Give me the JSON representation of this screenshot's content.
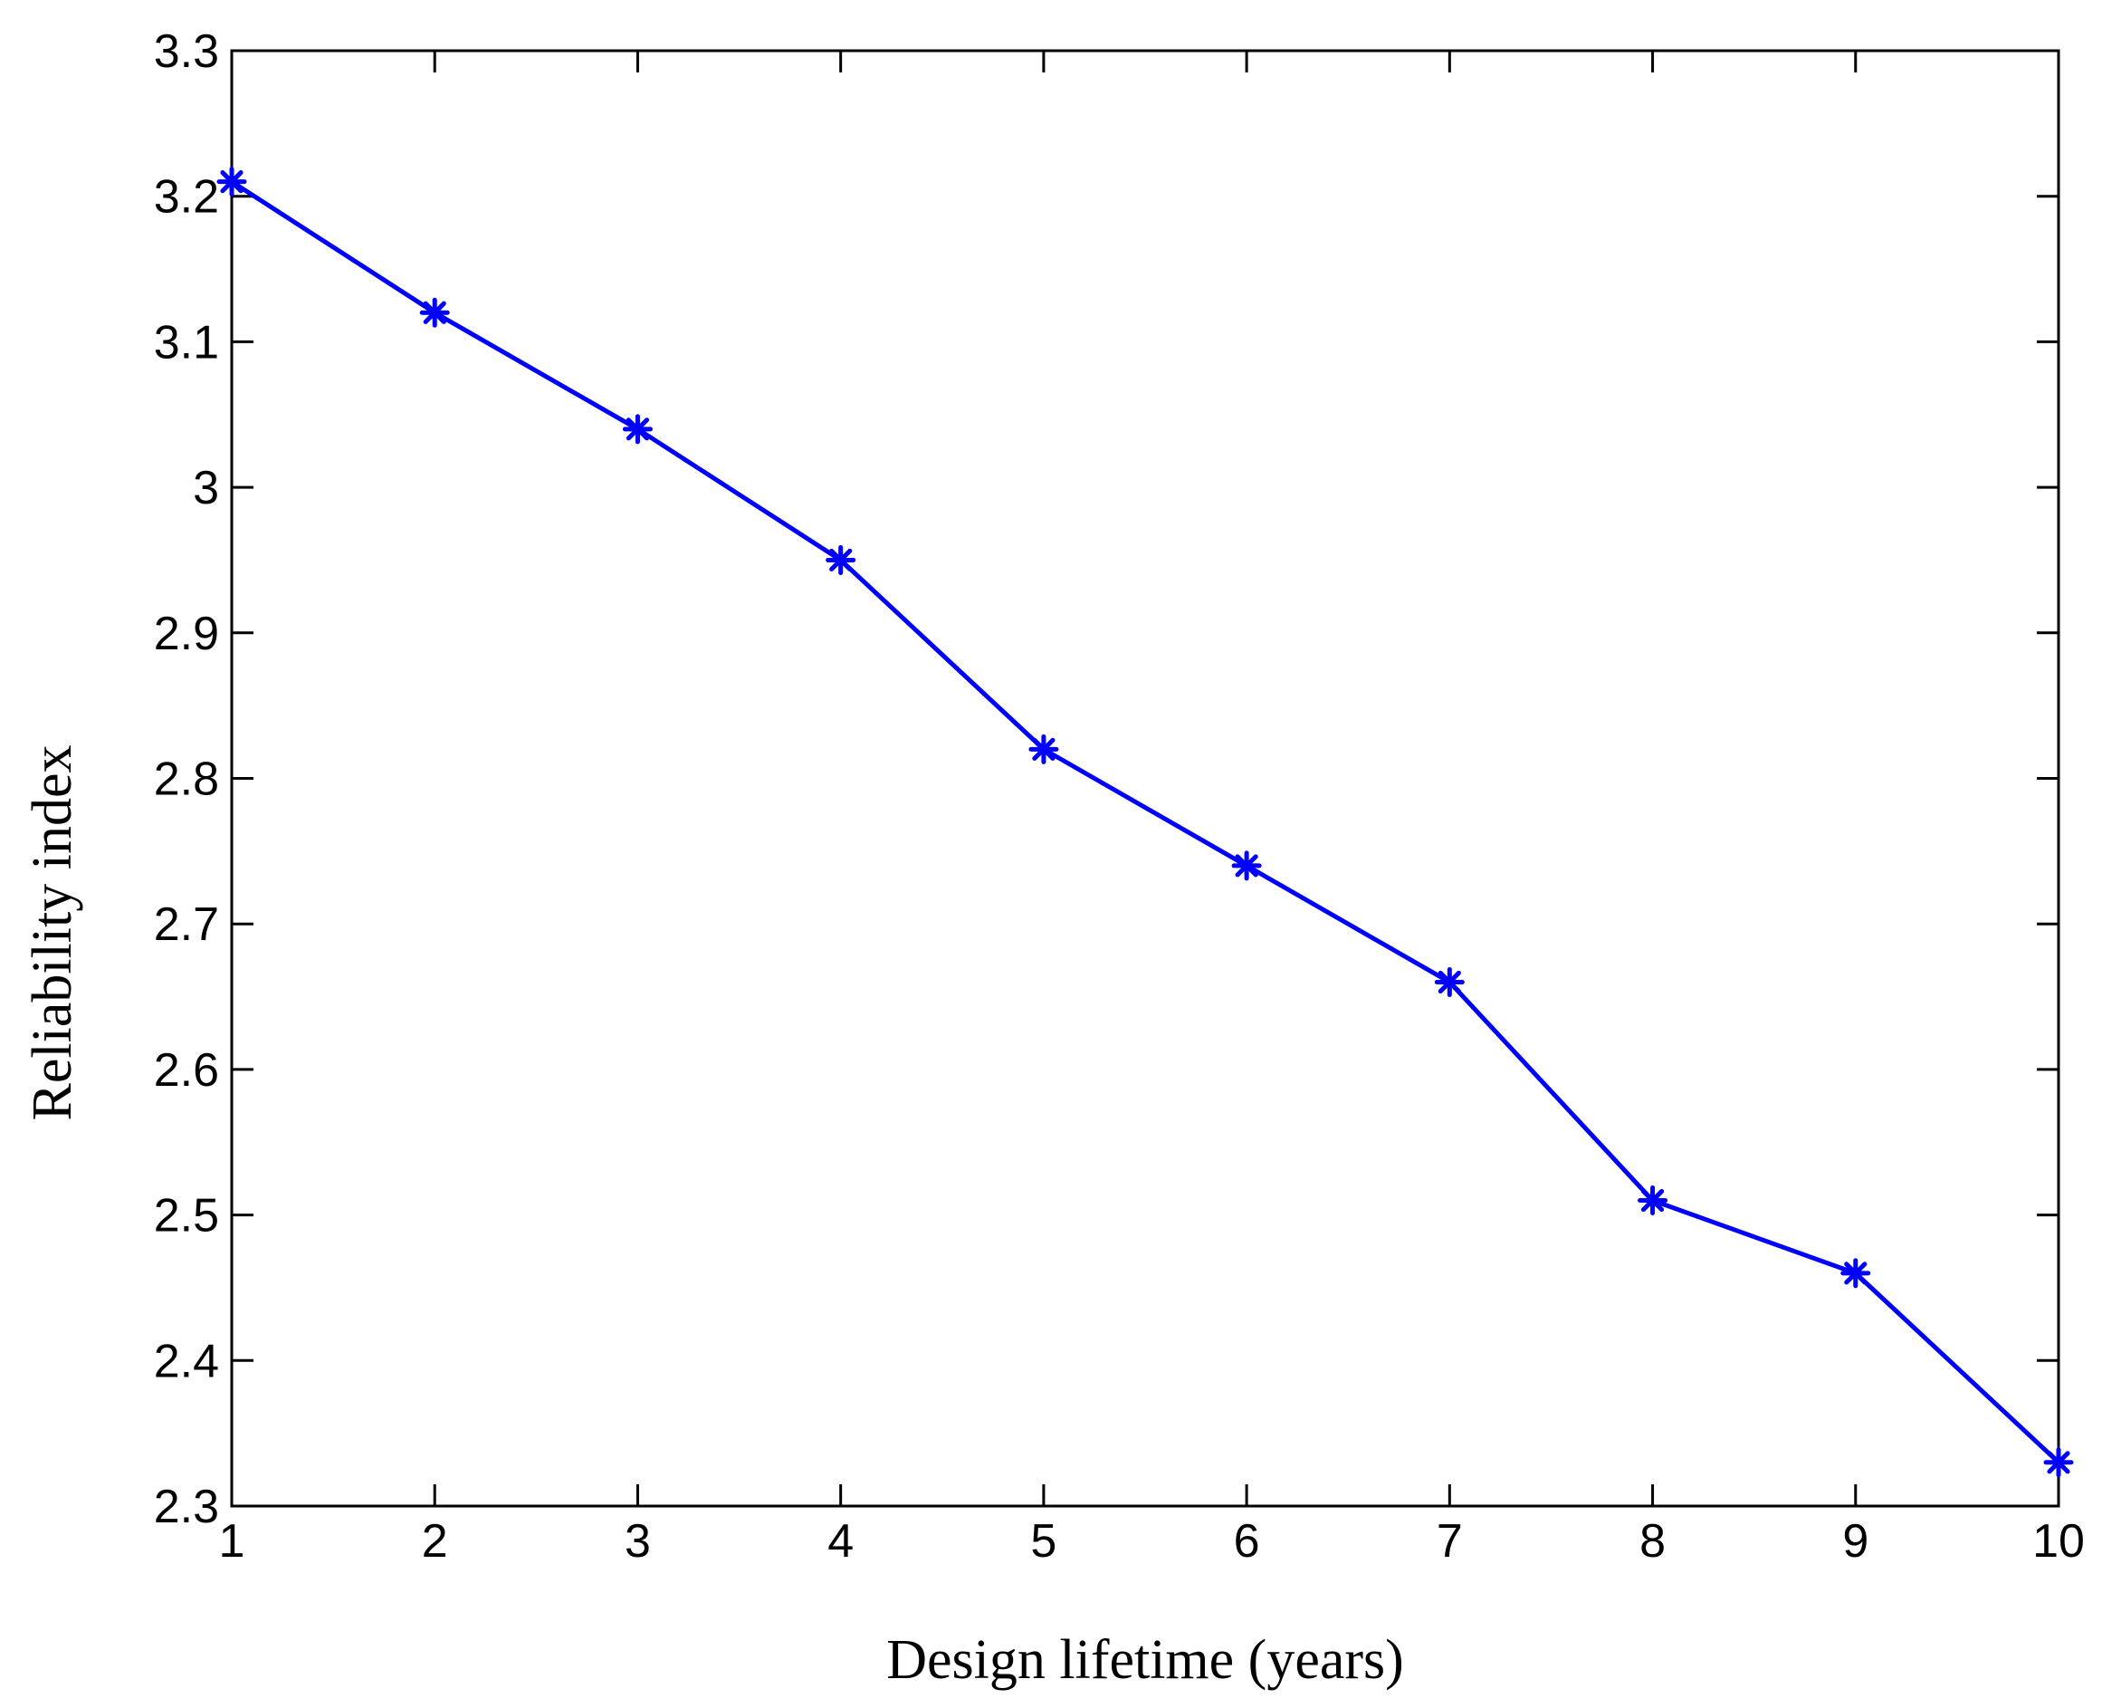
{
  "chart_data": {
    "type": "line",
    "title": "",
    "xlabel": "Design lifetime (years)",
    "ylabel": "Reliability index",
    "xlim": [
      1,
      10
    ],
    "ylim": [
      2.3,
      3.3
    ],
    "xticks": [
      "1",
      "2",
      "3",
      "4",
      "5",
      "6",
      "7",
      "8",
      "9",
      "10"
    ],
    "yticks": [
      "2.3",
      "2.4",
      "2.5",
      "2.6",
      "2.7",
      "2.8",
      "2.9",
      "3",
      "3.1",
      "3.2",
      "3.3"
    ],
    "grid": false,
    "legend": "none",
    "marker": "asterisk",
    "series": [
      {
        "color": "#0000ff",
        "x": [
          1,
          2,
          3,
          4,
          5,
          6,
          7,
          8,
          9,
          10
        ],
        "y": [
          3.21,
          3.12,
          3.04,
          2.95,
          2.82,
          2.74,
          2.66,
          2.51,
          2.46,
          2.33
        ]
      }
    ]
  }
}
